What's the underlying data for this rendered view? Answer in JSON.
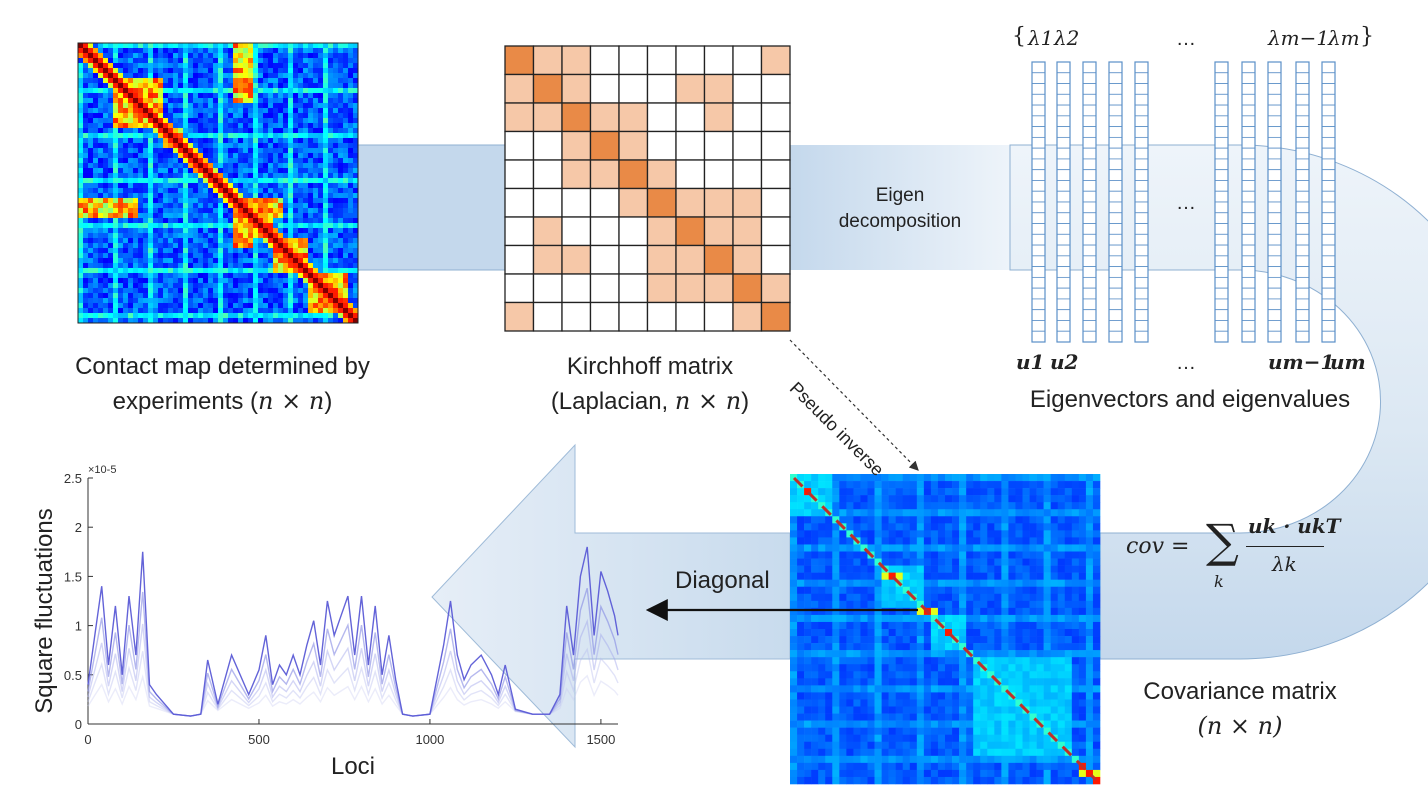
{
  "captions": {
    "contact_map_line1": "Contact map determined by",
    "contact_map_line2": "experiments (",
    "contact_map_dim": "n × n",
    "contact_map_close": ")",
    "kirchhoff_line1": "Kirchhoff matrix",
    "kirchhoff_line2": "(Laplacian, ",
    "kirchhoff_dim": "n × n",
    "kirchhoff_close": ")",
    "eigen_title": "Eigenvectors and eigenvalues",
    "covariance_line1": "Covariance matrix",
    "covariance_dim": "(n × n)"
  },
  "arrows": {
    "eigen_decomposition_line1": "Eigen",
    "eigen_decomposition_line2": "decomposition",
    "pseudo_inverse": "Pseudo inverse",
    "diagonal": "Diagonal"
  },
  "eigen": {
    "lambda_open": "{",
    "lambda_1": "λ1",
    "lambda_2": "λ2",
    "lambda_dots": "…",
    "lambda_m_minus_1": "λm−1",
    "lambda_m": "λm",
    "lambda_close": "}",
    "vector_dots": "…",
    "u_1": "u1",
    "u_2": "u2",
    "u_dots": "…",
    "u_m_minus_1": "um−1",
    "u_m": "um"
  },
  "formula": {
    "lhs": "cov =",
    "sum": "∑",
    "sum_index": "k",
    "numerator": "uk · ukT",
    "denominator": "λk"
  },
  "colors": {
    "band": "#c4d8ec",
    "band_edge": "#7a9cc0",
    "kirchhoff_diag": "#e98a47",
    "kirchhoff_off": "#f6c8a8",
    "vector_stroke": "#5b8fc7",
    "plot_line": "#5b5bd6",
    "dashed_diag": "#c0302a"
  },
  "chart_data": {
    "type": "line",
    "xlabel": "Loci",
    "ylabel": "Square fluctuations",
    "exponent_label": "×10-5",
    "xlim": [
      0,
      1550
    ],
    "ylim": [
      0,
      2.5
    ],
    "xticks": [
      "0",
      "500",
      "1000",
      "1500"
    ],
    "yticks": [
      "0",
      "0.5",
      "1",
      "1.5",
      "2",
      "2.5"
    ],
    "series": [
      {
        "values_note": "",
        "x": [
          0,
          20,
          40,
          60,
          80,
          100,
          120,
          140,
          160,
          180,
          200,
          250,
          300,
          330,
          350,
          380,
          420,
          470,
          500,
          520,
          540,
          560,
          580,
          600,
          620,
          640,
          660,
          680,
          700,
          720,
          740,
          760,
          780,
          800,
          820,
          840,
          860,
          880,
          900,
          920,
          950,
          1000,
          1040,
          1060,
          1080,
          1100,
          1120,
          1150,
          1180,
          1200,
          1220,
          1250,
          1300,
          1350,
          1380,
          1400,
          1420,
          1440,
          1460,
          1480,
          1500,
          1520,
          1540,
          1550
        ],
        "y": [
          0.4,
          0.9,
          1.4,
          0.6,
          1.2,
          0.5,
          1.3,
          0.7,
          1.75,
          0.4,
          0.3,
          0.1,
          0.08,
          0.1,
          0.65,
          0.2,
          0.7,
          0.3,
          0.55,
          0.9,
          0.4,
          0.6,
          0.5,
          0.7,
          0.5,
          0.8,
          1.05,
          0.6,
          1.25,
          0.9,
          1.1,
          1.3,
          0.7,
          1.3,
          0.6,
          1.2,
          0.5,
          0.9,
          0.45,
          0.1,
          0.08,
          0.1,
          0.8,
          1.25,
          0.7,
          0.45,
          0.6,
          0.7,
          0.5,
          0.3,
          0.6,
          0.15,
          0.1,
          0.1,
          0.3,
          1.2,
          0.7,
          1.5,
          1.8,
          0.9,
          1.55,
          1.35,
          1.1,
          0.9
        ]
      }
    ]
  }
}
